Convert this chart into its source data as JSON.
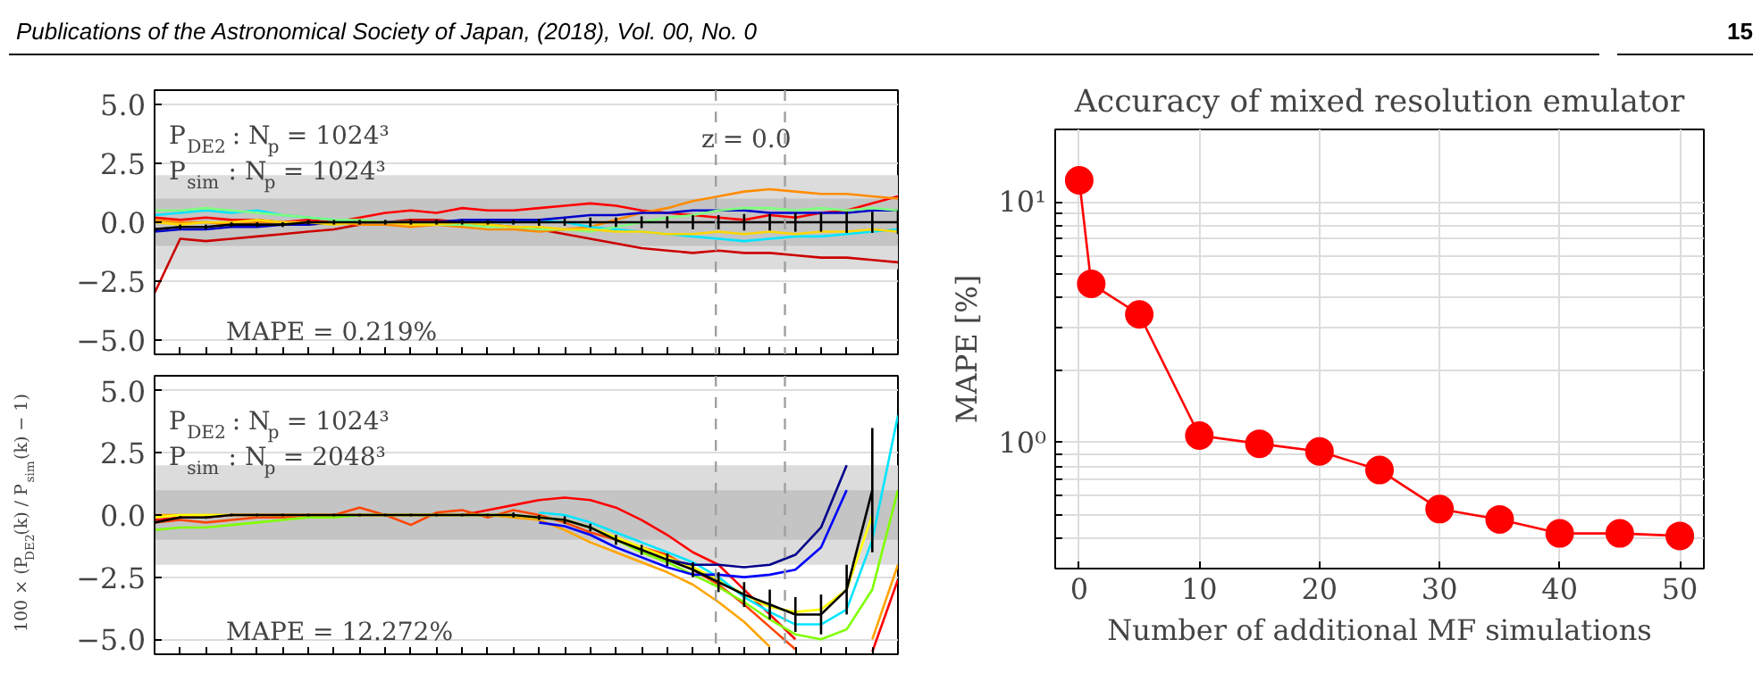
{
  "chart_data": [
    {
      "type": "line",
      "categories": [
        null,
        null,
        null,
        null,
        null,
        null,
        null,
        null,
        null,
        null,
        null,
        null,
        null,
        null,
        null,
        null,
        null,
        null,
        null,
        null,
        null,
        null,
        null,
        null,
        null,
        null,
        null,
        null,
        null,
        null
      ],
      "ylim": [
        -5.6,
        5.6
      ],
      "yticks": [
        {
          "value": 5.0,
          "label": "5.0"
        },
        {
          "value": 2.5,
          "label": "2.5"
        },
        {
          "value": 0.0,
          "label": "0.0"
        },
        {
          "value": -2.5,
          "label": "−2.5"
        },
        {
          "value": -5.0,
          "label": "−5.0"
        }
      ],
      "grid": "y",
      "line_style": "solid",
      "bands": [
        {
          "axis": "y",
          "from": -2,
          "to": 2,
          "color": "#dcdcdc"
        },
        {
          "axis": "y",
          "from": -1,
          "to": 1,
          "color": "#c4c4c4"
        }
      ],
      "annotations": [
        "P$_{DE2}$ : N$_{p}$ = 1024³",
        "P$_{sim}$ : N$_{p}$ = 1024³",
        "MAPE = 0.219%",
        "z = 0.0",
        "Publications of the Astronomical Society of Japan, (2018), Vol. 00, No. 0",
        "15"
      ],
      "series": [
        {
          "color": "#cc0000",
          "values": [
            -3.0,
            -0.7,
            -0.8,
            -0.7,
            -0.6,
            -0.5,
            -0.4,
            -0.3,
            -0.1,
            0.0,
            0.1,
            0.1,
            0.0,
            -0.1,
            -0.2,
            -0.3,
            -0.5,
            -0.7,
            -0.9,
            -1.1,
            -1.2,
            -1.3,
            -1.2,
            -1.3,
            -1.3,
            -1.4,
            -1.5,
            -1.5,
            -1.6,
            -1.7
          ]
        },
        {
          "color": "#ff0000",
          "values": [
            0.2,
            0.1,
            0.2,
            0.1,
            0.1,
            0.0,
            0.1,
            0.0,
            0.2,
            0.4,
            0.5,
            0.4,
            0.6,
            0.5,
            0.5,
            0.6,
            0.7,
            0.8,
            0.7,
            0.5,
            0.4,
            0.3,
            0.2,
            0.1,
            0.3,
            0.2,
            0.4,
            0.5,
            0.8,
            1.1
          ]
        },
        {
          "color": "#ff8c00",
          "values": [
            0.1,
            0.0,
            0.0,
            -0.1,
            0.0,
            0.0,
            -0.1,
            0.0,
            -0.1,
            -0.1,
            -0.2,
            -0.1,
            -0.2,
            -0.3,
            -0.3,
            -0.4,
            -0.3,
            -0.2,
            0.1,
            0.4,
            0.6,
            0.9,
            1.1,
            1.3,
            1.4,
            1.3,
            1.2,
            1.2,
            1.1,
            1.0
          ]
        },
        {
          "color": "#00e5ff",
          "values": [
            0.3,
            0.4,
            0.5,
            0.4,
            0.5,
            0.3,
            0.2,
            0.1,
            0.0,
            0.0,
            0.0,
            -0.1,
            0.0,
            0.0,
            0.0,
            0.1,
            0.0,
            -0.2,
            -0.3,
            -0.4,
            -0.5,
            -0.6,
            -0.7,
            -0.8,
            -0.7,
            -0.6,
            -0.6,
            -0.5,
            -0.4,
            -0.3
          ]
        },
        {
          "color": "#0000cc",
          "values": [
            -0.4,
            -0.3,
            -0.3,
            -0.2,
            -0.2,
            -0.1,
            -0.1,
            0.0,
            0.0,
            0.0,
            0.0,
            0.0,
            0.1,
            0.1,
            0.1,
            0.1,
            0.2,
            0.3,
            0.3,
            0.4,
            0.4,
            0.5,
            0.5,
            0.5,
            0.4,
            0.4,
            0.4,
            0.4,
            0.5,
            0.5
          ]
        },
        {
          "color": "#7fff7f",
          "values": [
            0.5,
            0.5,
            0.6,
            0.5,
            0.4,
            0.3,
            0.2,
            0.1,
            0.1,
            0.0,
            0.0,
            -0.1,
            -0.1,
            -0.2,
            -0.2,
            -0.3,
            -0.3,
            -0.4,
            -0.2,
            0.0,
            0.2,
            0.3,
            0.5,
            0.6,
            0.6,
            0.5,
            0.6,
            0.5,
            0.6,
            0.5
          ]
        },
        {
          "color": "#ffd700",
          "values": [
            0.0,
            -0.1,
            0.0,
            0.0,
            0.1,
            0.0,
            0.0,
            -0.1,
            0.0,
            0.0,
            -0.1,
            -0.1,
            0.0,
            -0.1,
            -0.2,
            -0.2,
            -0.3,
            -0.3,
            -0.4,
            -0.4,
            -0.5,
            -0.5,
            -0.4,
            -0.5,
            -0.4,
            -0.5,
            -0.4,
            -0.4,
            -0.3,
            -0.4
          ]
        },
        {
          "color": "#000000",
          "values": [
            -0.3,
            -0.2,
            -0.2,
            -0.1,
            -0.1,
            -0.1,
            0.0,
            0.0,
            0.0,
            0.0,
            0.0,
            0.0,
            0.0,
            0.0,
            0.0,
            0.0,
            0.0,
            0.0,
            0.0,
            0.0,
            0.0,
            0.0,
            0.0,
            0.0,
            0.0,
            0.0,
            0.0,
            0.0,
            0.0,
            0.0
          ],
          "errors": [
            0.1,
            0.1,
            0.1,
            0.1,
            0.1,
            0.1,
            0.1,
            0.1,
            0.1,
            0.1,
            0.1,
            0.1,
            0.1,
            0.1,
            0.1,
            0.15,
            0.15,
            0.2,
            0.2,
            0.25,
            0.25,
            0.3,
            0.3,
            0.35,
            0.35,
            0.4,
            0.4,
            0.45,
            0.45,
            0.5
          ]
        }
      ]
    },
    {
      "type": "line",
      "categories": [
        null,
        null,
        null,
        null,
        null,
        null,
        null,
        null,
        null,
        null,
        null,
        null,
        null,
        null,
        null,
        null,
        null,
        null,
        null,
        null,
        null,
        null,
        null,
        null,
        null,
        null,
        null,
        null,
        null,
        null
      ],
      "ylabel": "100 × (P$_{DE2}$(k) / P$_{sim}$(k) − 1)",
      "ylim": [
        -5.6,
        5.6
      ],
      "yticks": [
        {
          "value": 5.0,
          "label": "5.0"
        },
        {
          "value": 2.5,
          "label": "2.5"
        },
        {
          "value": 0.0,
          "label": "0.0"
        },
        {
          "value": -2.5,
          "label": "−2.5"
        },
        {
          "value": -5.0,
          "label": "−5.0"
        }
      ],
      "grid": "y",
      "line_style": "solid",
      "bands": [
        {
          "axis": "y",
          "from": -2,
          "to": 2,
          "color": "#dcdcdc"
        },
        {
          "axis": "y",
          "from": -1,
          "to": 1,
          "color": "#c4c4c4"
        }
      ],
      "annotations": [
        "P$_{DE2}$ : N$_{p}$ = 1024³",
        "P$_{sim}$ : N$_{p}$ = 2048³",
        "MAPE = 12.272%"
      ],
      "series": [
        {
          "color": "#ff0000",
          "values": [
            -0.2,
            -0.1,
            -0.1,
            0.0,
            0.0,
            0.0,
            0.0,
            0.0,
            0.0,
            0.0,
            0.0,
            0.0,
            0.0,
            0.2,
            0.4,
            0.6,
            0.7,
            0.6,
            0.3,
            -0.2,
            -0.8,
            -1.5,
            -2.0,
            -3.0,
            -4.0,
            -5.0,
            null,
            null,
            -5.5,
            -2.6
          ]
        },
        {
          "color": "#ff4500",
          "values": [
            -0.3,
            -0.2,
            -0.3,
            -0.2,
            -0.1,
            -0.1,
            0.0,
            0.0,
            0.3,
            0.0,
            -0.4,
            0.1,
            0.2,
            -0.1,
            0.2,
            0.0,
            -0.3,
            -0.7,
            -1.0,
            -1.3,
            -1.6,
            -2.2,
            -2.8,
            -3.6,
            -4.5,
            -5.4,
            null,
            null,
            null,
            null
          ]
        },
        {
          "color": "#ffa500",
          "values": [
            0.0,
            0.0,
            0.0,
            0.0,
            0.0,
            0.0,
            0.0,
            0.0,
            0.0,
            0.0,
            0.0,
            0.0,
            0.0,
            0.0,
            -0.1,
            -0.2,
            -0.6,
            -1.1,
            -1.5,
            -1.9,
            -2.3,
            -2.8,
            -3.5,
            -4.3,
            -5.3,
            null,
            null,
            null,
            -5.0,
            -2.0
          ]
        },
        {
          "color": "#ffff00",
          "values": [
            -0.1,
            0.0,
            0.0,
            0.0,
            0.0,
            0.0,
            0.0,
            0.0,
            0.0,
            0.0,
            0.0,
            0.0,
            0.0,
            0.0,
            0.0,
            -0.1,
            -0.2,
            -0.5,
            -0.9,
            -1.3,
            -1.7,
            -2.1,
            -2.6,
            -3.2,
            -3.7,
            -3.9,
            -3.8,
            -3.0,
            0.0,
            null
          ]
        },
        {
          "color": "#7fff00",
          "values": [
            -0.6,
            -0.5,
            -0.5,
            -0.4,
            -0.3,
            -0.2,
            -0.1,
            -0.1,
            0.0,
            0.0,
            0.0,
            0.0,
            0.0,
            0.0,
            0.0,
            -0.1,
            -0.2,
            -0.5,
            -1.0,
            -1.5,
            -1.9,
            -2.4,
            -2.9,
            -3.5,
            -4.2,
            -4.8,
            -5.0,
            -4.6,
            -3.0,
            1.0
          ]
        },
        {
          "color": "#00e5ff",
          "values": [
            null,
            null,
            null,
            null,
            null,
            null,
            null,
            null,
            null,
            null,
            null,
            null,
            null,
            null,
            null,
            0.1,
            0.0,
            -0.3,
            -0.7,
            -1.1,
            -1.5,
            -1.9,
            -2.5,
            -3.3,
            -3.9,
            -4.4,
            -4.4,
            -3.8,
            -1.0,
            4.0
          ]
        },
        {
          "color": "#0000ff",
          "values": [
            null,
            null,
            null,
            null,
            null,
            null,
            null,
            null,
            null,
            null,
            null,
            null,
            null,
            null,
            null,
            -0.3,
            -0.45,
            -0.8,
            -1.3,
            -1.7,
            -2.1,
            -2.4,
            -2.4,
            -2.5,
            -2.4,
            -2.2,
            -1.3,
            1.0,
            null,
            null
          ]
        },
        {
          "color": "#00008b",
          "values": [
            null,
            null,
            null,
            null,
            null,
            null,
            null,
            null,
            null,
            null,
            null,
            null,
            null,
            null,
            null,
            null,
            null,
            null,
            null,
            null,
            -1.8,
            -2.0,
            -2.0,
            -2.1,
            -2.0,
            -1.6,
            -0.5,
            2.0,
            null,
            null
          ]
        },
        {
          "color": "#000000",
          "values": [
            -0.3,
            -0.1,
            -0.1,
            0.0,
            0.0,
            0.0,
            0.0,
            0.0,
            0.0,
            0.0,
            0.0,
            0.0,
            0.0,
            0.0,
            0.0,
            -0.1,
            -0.2,
            -0.5,
            -1.0,
            -1.4,
            -1.8,
            -2.2,
            -2.7,
            -3.2,
            -3.6,
            -4.0,
            -4.0,
            -3.0,
            1.0,
            null
          ],
          "errors": [
            0.05,
            0.05,
            0.05,
            0.05,
            0.05,
            0.05,
            0.05,
            0.05,
            0.05,
            0.05,
            0.05,
            0.05,
            0.05,
            0.05,
            0.1,
            0.1,
            0.15,
            0.15,
            0.2,
            0.2,
            0.25,
            0.3,
            0.4,
            0.5,
            0.6,
            0.7,
            0.8,
            1.0,
            2.5,
            null
          ]
        }
      ]
    },
    {
      "type": "line",
      "title": "Accuracy of mixed resolution emulator",
      "xlabel": "Number of additional MF simulations",
      "ylabel": "MAPE [%]",
      "x": [
        0,
        1,
        5,
        10,
        15,
        20,
        25,
        30,
        35,
        40,
        45,
        50
      ],
      "log": "y",
      "grid": true,
      "marker": "circle",
      "line_style": "solid",
      "xlim": [
        -2,
        52
      ],
      "xticks": [
        0,
        10,
        20,
        30,
        40,
        50
      ],
      "ylim": [
        0.3,
        20
      ],
      "yticks": [
        {
          "value": 0.3,
          "label": null
        },
        {
          "value": 0.4,
          "label": null
        },
        {
          "value": 0.5,
          "label": null
        },
        {
          "value": 0.6,
          "label": null
        },
        {
          "value": 0.7,
          "label": null
        },
        {
          "value": 0.8,
          "label": null
        },
        {
          "value": 0.9,
          "label": null
        },
        {
          "value": 1,
          "label": "10⁰"
        },
        {
          "value": 2,
          "label": null
        },
        {
          "value": 3,
          "label": null
        },
        {
          "value": 4,
          "label": null
        },
        {
          "value": 5,
          "label": null
        },
        {
          "value": 6,
          "label": null
        },
        {
          "value": 7,
          "label": null
        },
        {
          "value": 8,
          "label": null
        },
        {
          "value": 9,
          "label": null
        },
        {
          "value": 10,
          "label": "10¹"
        },
        {
          "value": 20,
          "label": null
        }
      ],
      "series": [
        {
          "color": "#ff0000",
          "values": [
            12.3,
            4.57,
            3.41,
            1.07,
            0.99,
            0.92,
            0.77,
            0.53,
            0.48,
            0.42,
            0.42,
            0.41
          ]
        }
      ]
    }
  ]
}
